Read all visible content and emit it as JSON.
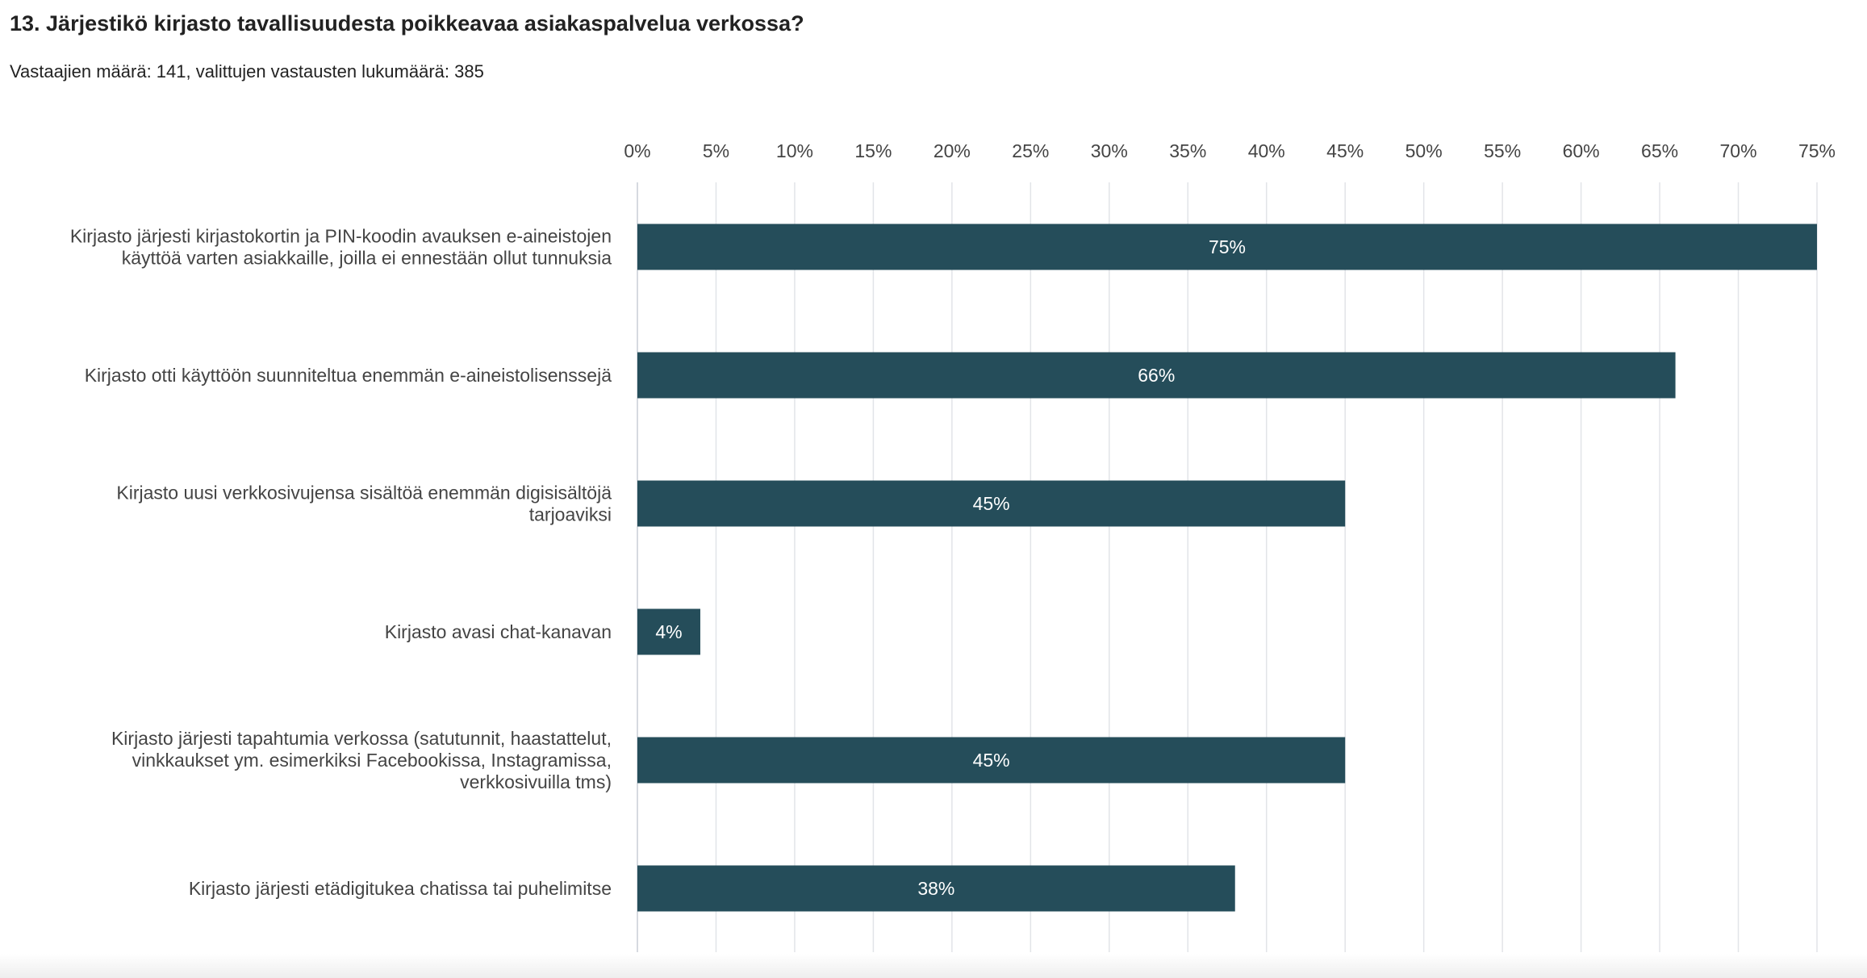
{
  "question": {
    "title": "13. Järjestikö kirjasto tavallisuudesta poikkeavaa asiakaspalvelua verkossa?",
    "summary": "Vastaajien määrä: 141, valittujen vastausten lukumäärä: 385"
  },
  "chart_data": {
    "type": "bar",
    "orientation": "horizontal",
    "title": "13. Järjestikö kirjasto tavallisuudesta poikkeavaa asiakaspalvelua verkossa?",
    "xlabel": "",
    "ylabel": "",
    "xlim": [
      0,
      75
    ],
    "grid": true,
    "legend": "none",
    "ticks": [
      "0%",
      "5%",
      "10%",
      "15%",
      "20%",
      "25%",
      "30%",
      "35%",
      "40%",
      "45%",
      "50%",
      "55%",
      "60%",
      "65%",
      "70%",
      "75%"
    ],
    "tick_values": [
      0,
      5,
      10,
      15,
      20,
      25,
      30,
      35,
      40,
      45,
      50,
      55,
      60,
      65,
      70,
      75
    ],
    "bar_color": "#254d5a",
    "categories": [
      [
        "Kirjasto järjesti kirjastokortin ja PIN-koodin avauksen e-aineistojen",
        "käyttöä varten asiakkaille, joilla ei ennestään ollut tunnuksia"
      ],
      [
        "Kirjasto otti käyttöön suunniteltua enemmän e-aineistolisenssejä"
      ],
      [
        "Kirjasto uusi verkkosivujensa sisältöä enemmän digisisältöjä",
        "tarjoaviksi"
      ],
      [
        "Kirjasto avasi chat-kanavan"
      ],
      [
        "Kirjasto järjesti tapahtumia verkossa (satutunnit, haastattelut,",
        "vinkkaukset ym. esimerkiksi Facebookissa, Instagramissa,",
        "verkkosivuilla tms)"
      ],
      [
        "Kirjasto järjesti etädigitukea chatissa tai puhelimitse"
      ]
    ],
    "values": [
      75,
      66,
      45,
      4,
      45,
      38
    ],
    "value_labels": [
      "75%",
      "66%",
      "45%",
      "4%",
      "45%",
      "38%"
    ]
  }
}
